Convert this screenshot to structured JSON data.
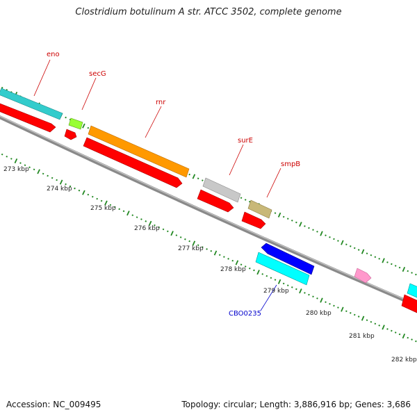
{
  "title": "Clostridium botulinum A str. ATCC 3502, complete genome",
  "footer": {
    "accession": "Accession: NC_009495",
    "summary": "Topology: circular; Length: 3,886,916 bp; Genes: 3,686"
  },
  "ticks": [
    "273 kbp",
    "274 kbp",
    "275 kbp",
    "276 kbp",
    "277 kbp",
    "278 kbp",
    "279 kbp",
    "280 kbp",
    "281 kbp",
    "282 kbp"
  ],
  "gene_labels": [
    {
      "name": "eno",
      "color": "#cc0000"
    },
    {
      "name": "secG",
      "color": "#cc0000"
    },
    {
      "name": "rnr",
      "color": "#cc0000"
    },
    {
      "name": "surE",
      "color": "#cc0000"
    },
    {
      "name": "smpB",
      "color": "#cc0000"
    },
    {
      "name": "CBO0235",
      "color": "#0000cc"
    }
  ],
  "colors": {
    "backbone": "#808080",
    "cds_red": "#ff0000",
    "eno": "#33cccc",
    "secG": "#99ff33",
    "rnr": "#ff9900",
    "surE": "#c8c8c8",
    "smpB": "#c8b878",
    "blue": "#0000ff",
    "cyan": "#00ffff",
    "pink": "#ff99cc",
    "tick_major": "#228822",
    "tick_minor": "#228822"
  }
}
